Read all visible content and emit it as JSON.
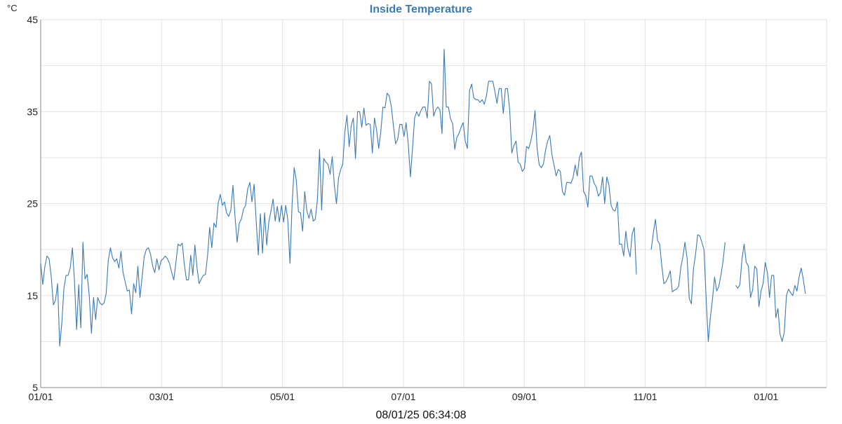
{
  "chart_data": {
    "type": "line",
    "title": "Inside Temperature",
    "unit_label": "°C",
    "footer_timestamp": "08/01/25 06:34:08",
    "y_ticks": [
      5,
      15,
      25,
      35,
      45
    ],
    "ylim": [
      5,
      45
    ],
    "x_ticks": [
      "01/01",
      "03/01",
      "05/01",
      "07/01",
      "09/01",
      "11/01",
      "01/01"
    ],
    "grid": true,
    "colors": {
      "line": "#3a7ab5",
      "title": "#3a7ab5",
      "grid": "#e2e2e2",
      "axis": "#888888"
    },
    "series": [
      {
        "values": [
          18.5,
          16.2,
          18.2,
          19.3,
          19.0,
          17.0,
          14.0,
          14.5,
          16.3,
          9.5,
          12.0,
          15.8,
          17.2,
          17.2,
          18.0,
          20.2,
          16.5,
          11.3,
          16.2,
          11.5,
          20.8,
          16.8,
          17.3,
          15.0,
          10.9,
          14.8,
          12.4,
          14.8,
          14.2,
          14.0,
          14.2,
          15.2,
          18.8,
          20.2,
          19.1,
          18.7,
          19.0,
          18.0,
          19.8,
          17.5,
          16.5,
          15.5,
          15.6,
          13.0,
          16.3,
          15.3,
          18.2,
          14.8,
          17.0,
          19.2,
          20.0,
          20.2,
          19.5,
          18.2,
          17.5,
          19.0,
          17.8,
          18.8,
          19.0,
          19.3,
          19.0,
          18.5,
          17.5,
          16.7,
          18.6,
          20.6,
          20.4,
          20.7,
          18.4,
          16.7,
          16.7,
          19.4,
          17.2,
          20.5,
          18.0,
          16.3,
          16.8,
          17.2,
          17.3,
          19.3,
          22.4,
          20.2,
          22.9,
          22.4,
          25.0,
          26.0,
          24.8,
          25.2,
          24.0,
          23.6,
          24.3,
          27.0,
          23.5,
          20.8,
          22.9,
          23.3,
          24.4,
          24.8,
          26.6,
          27.3,
          25.2,
          27.1,
          23.1,
          19.4,
          23.9,
          19.6,
          24.0,
          20.5,
          23.0,
          24.2,
          25.5,
          23.1,
          24.7,
          23.0,
          24.8,
          23.0,
          24.8,
          23.2,
          18.5,
          25.0,
          28.9,
          27.5,
          24.1,
          24.0,
          22.0,
          26.3,
          24.2,
          23.4,
          24.4,
          23.1,
          23.3,
          25.5,
          30.9,
          24.3,
          29.9,
          29.5,
          29.3,
          28.2,
          30.1,
          27.0,
          25.0,
          27.8,
          28.7,
          29.3,
          32.8,
          34.6,
          31.2,
          33.5,
          34.3,
          29.9,
          35.0,
          35.0,
          33.3,
          35.4,
          33.5,
          33.7,
          33.6,
          30.5,
          34.3,
          33.0,
          31.0,
          32.8,
          35.5,
          35.4,
          37.0,
          36.7,
          35.5,
          33.4,
          31.5,
          32.0,
          33.6,
          33.6,
          32.3,
          33.8,
          31.5,
          27.9,
          31.0,
          34.3,
          35.0,
          34.5,
          35.1,
          35.5,
          35.5,
          34.3,
          38.3,
          38.0,
          34.5,
          35.2,
          35.5,
          35.2,
          32.6,
          41.8,
          35.5,
          35.5,
          34.2,
          33.7,
          30.9,
          32.2,
          32.6,
          33.3,
          33.8,
          31.8,
          31.0,
          37.3,
          38.0,
          36.5,
          36.3,
          36.3,
          36.0,
          36.3,
          35.8,
          36.7,
          38.3,
          38.3,
          38.3,
          37.2,
          35.9,
          37.5,
          37.5,
          34.8,
          37.5,
          37.5,
          35.2,
          30.5,
          31.3,
          31.8,
          29.5,
          29.3,
          28.5,
          28.8,
          31.2,
          31.0,
          31.8,
          33.0,
          35.1,
          31.0,
          29.2,
          28.9,
          29.3,
          30.8,
          31.8,
          32.4,
          30.3,
          29.2,
          28.0,
          28.7,
          28.5,
          26.3,
          25.9,
          27.3,
          27.3,
          27.2,
          27.8,
          29.2,
          28.0,
          30.0,
          30.6,
          26.3,
          25.9,
          24.6,
          28.0,
          28.0,
          27.2,
          26.8,
          25.8,
          26.2,
          27.9,
          25.0,
          27.9,
          27.0,
          24.8,
          24.3,
          24.2,
          25.2,
          20.6,
          20.6,
          19.3,
          22.0,
          20.1,
          19.2,
          21.7,
          22.4,
          17.3,
          null,
          null,
          null,
          null,
          null,
          null,
          20.0,
          21.8,
          23.3,
          21.0,
          20.6,
          18.3,
          16.3,
          16.5,
          17.0,
          17.7,
          15.4,
          15.6,
          15.7,
          16.0,
          18.0,
          19.2,
          20.8,
          19.0,
          14.7,
          14.1,
          17.9,
          19.5,
          21.6,
          21.5,
          20.8,
          20.0,
          14.8,
          10.0,
          12.6,
          14.6,
          17.0,
          15.5,
          16.0,
          17.2,
          18.7,
          20.8,
          null,
          null,
          null,
          null,
          16.1,
          15.8,
          16.2,
          19.0,
          20.6,
          18.6,
          18.2,
          14.8,
          15.6,
          18.2,
          17.9,
          13.8,
          15.5,
          16.3,
          18.6,
          17.5,
          14.8,
          17.2,
          17.2,
          12.6,
          13.6,
          10.8,
          10.0,
          11.0,
          15.0,
          15.7,
          15.3,
          15.0,
          16.1,
          15.5,
          17.0,
          18.0,
          16.8,
          15.2
        ]
      }
    ]
  }
}
